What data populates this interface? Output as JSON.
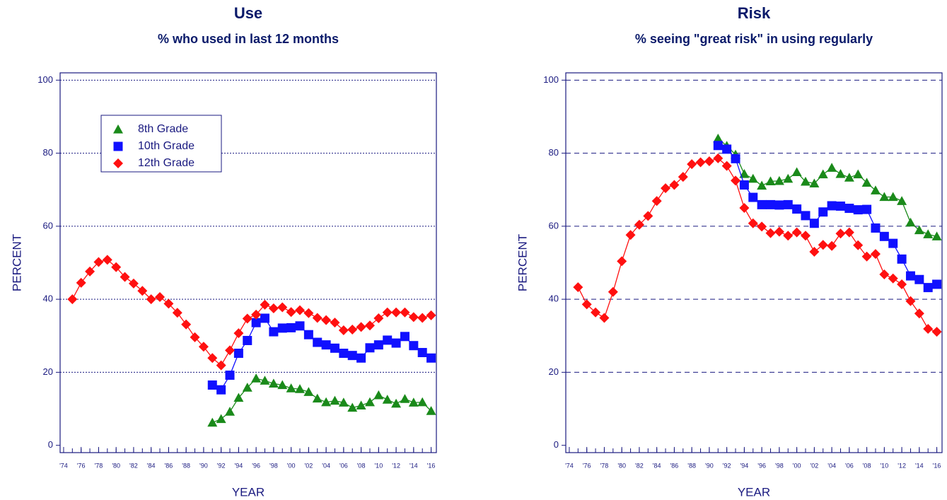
{
  "chart_data": [
    {
      "type": "line",
      "title": "Use",
      "subtitle": "% who used in last 12 months",
      "xlabel": "YEAR",
      "ylabel": "PERCENT",
      "x": [
        1975,
        1976,
        1977,
        1978,
        1979,
        1980,
        1981,
        1982,
        1983,
        1984,
        1985,
        1986,
        1987,
        1988,
        1989,
        1990,
        1991,
        1992,
        1993,
        1994,
        1995,
        1996,
        1997,
        1998,
        1999,
        2000,
        2001,
        2002,
        2003,
        2004,
        2005,
        2006,
        2007,
        2008,
        2009,
        2010,
        2011,
        2012,
        2013,
        2014,
        2015,
        2016
      ],
      "series": [
        {
          "name": "8th Grade",
          "color": "#1a8a1a",
          "marker": "triangle",
          "values": [
            null,
            null,
            null,
            null,
            null,
            null,
            null,
            null,
            null,
            null,
            null,
            null,
            null,
            null,
            null,
            null,
            6.2,
            7.2,
            9.2,
            13.0,
            15.8,
            18.3,
            17.7,
            16.9,
            16.5,
            15.6,
            15.4,
            14.6,
            12.8,
            11.8,
            12.2,
            11.7,
            10.3,
            10.9,
            11.8,
            13.7,
            12.5,
            11.4,
            12.7,
            11.7,
            11.8,
            9.4
          ]
        },
        {
          "name": "10th Grade",
          "color": "#1010ff",
          "marker": "square",
          "values": [
            null,
            null,
            null,
            null,
            null,
            null,
            null,
            null,
            null,
            null,
            null,
            null,
            null,
            null,
            null,
            null,
            16.5,
            15.2,
            19.2,
            25.2,
            28.7,
            33.6,
            34.8,
            31.1,
            32.1,
            32.2,
            32.7,
            30.3,
            28.2,
            27.5,
            26.6,
            25.2,
            24.6,
            23.9,
            26.7,
            27.5,
            28.8,
            28.0,
            29.8,
            27.3,
            25.4,
            23.9
          ]
        },
        {
          "name": "12th Grade",
          "color": "#ff1010",
          "marker": "diamond",
          "values": [
            40.0,
            44.5,
            47.6,
            50.2,
            50.8,
            48.8,
            46.1,
            44.3,
            42.3,
            40.0,
            40.6,
            38.8,
            36.3,
            33.1,
            29.6,
            27.0,
            23.9,
            21.9,
            26.0,
            30.7,
            34.7,
            35.8,
            38.5,
            37.5,
            37.8,
            36.5,
            37.0,
            36.2,
            34.9,
            34.3,
            33.6,
            31.5,
            31.7,
            32.4,
            32.8,
            34.8,
            36.4,
            36.4,
            36.4,
            35.1,
            34.9,
            35.6
          ]
        }
      ],
      "xlim": [
        1973.6,
        2016.6
      ],
      "ylim": [
        -2,
        102
      ],
      "xticks": [
        {
          "value": 1974,
          "label": "'74"
        },
        {
          "value": 1976,
          "label": "'76"
        },
        {
          "value": 1978,
          "label": "'78"
        },
        {
          "value": 1980,
          "label": "'80"
        },
        {
          "value": 1982,
          "label": "'82"
        },
        {
          "value": 1984,
          "label": "'84"
        },
        {
          "value": 1986,
          "label": "'86"
        },
        {
          "value": 1988,
          "label": "'88"
        },
        {
          "value": 1990,
          "label": "'90"
        },
        {
          "value": 1992,
          "label": "'92"
        },
        {
          "value": 1994,
          "label": "'94"
        },
        {
          "value": 1996,
          "label": "'96"
        },
        {
          "value": 1998,
          "label": "'98"
        },
        {
          "value": 2000,
          "label": "'00"
        },
        {
          "value": 2002,
          "label": "'02"
        },
        {
          "value": 2004,
          "label": "'04"
        },
        {
          "value": 2006,
          "label": "'06"
        },
        {
          "value": 2008,
          "label": "'08"
        },
        {
          "value": 2010,
          "label": "'10"
        },
        {
          "value": 2012,
          "label": "'12"
        },
        {
          "value": 2014,
          "label": "'14"
        },
        {
          "value": 2016,
          "label": "'16"
        }
      ],
      "yticks": [
        0,
        20,
        40,
        60,
        80,
        100
      ],
      "grid": true,
      "grid_style": "dotted",
      "legend": "upper left"
    },
    {
      "type": "line",
      "title": "Risk",
      "subtitle": "% seeing \"great risk\" in using regularly",
      "xlabel": "YEAR",
      "ylabel": "PERCENT",
      "x": [
        1975,
        1976,
        1977,
        1978,
        1979,
        1980,
        1981,
        1982,
        1983,
        1984,
        1985,
        1986,
        1987,
        1988,
        1989,
        1990,
        1991,
        1992,
        1993,
        1994,
        1995,
        1996,
        1997,
        1998,
        1999,
        2000,
        2001,
        2002,
        2003,
        2004,
        2005,
        2006,
        2007,
        2008,
        2009,
        2010,
        2011,
        2012,
        2013,
        2014,
        2015,
        2016
      ],
      "series": [
        {
          "name": "8th Grade",
          "color": "#1a8a1a",
          "marker": "triangle",
          "values": [
            null,
            null,
            null,
            null,
            null,
            null,
            null,
            null,
            null,
            null,
            null,
            null,
            null,
            null,
            null,
            null,
            84.0,
            82.0,
            79.6,
            74.3,
            73.0,
            71.1,
            72.3,
            72.4,
            73.0,
            74.8,
            72.2,
            71.7,
            74.2,
            76.0,
            74.3,
            73.3,
            74.2,
            71.9,
            69.8,
            68.0,
            68.0,
            66.9,
            61.0,
            58.9,
            57.8,
            57.2
          ]
        },
        {
          "name": "10th Grade",
          "color": "#1010ff",
          "marker": "square",
          "values": [
            null,
            null,
            null,
            null,
            null,
            null,
            null,
            null,
            null,
            null,
            null,
            null,
            null,
            null,
            null,
            null,
            82.1,
            81.1,
            78.5,
            71.3,
            67.9,
            65.9,
            65.9,
            65.8,
            65.9,
            64.7,
            62.9,
            60.8,
            63.9,
            65.6,
            65.5,
            64.9,
            64.5,
            64.6,
            59.5,
            57.2,
            55.3,
            51.0,
            46.4,
            45.4,
            43.2,
            44.1
          ]
        },
        {
          "name": "12th Grade",
          "color": "#ff1010",
          "marker": "diamond",
          "values": [
            43.3,
            38.6,
            36.4,
            34.9,
            42.0,
            50.4,
            57.6,
            60.4,
            62.8,
            66.9,
            70.4,
            71.3,
            73.5,
            77.0,
            77.5,
            77.8,
            78.6,
            76.5,
            72.5,
            65.0,
            60.8,
            59.9,
            58.1,
            58.5,
            57.4,
            58.3,
            57.4,
            53.0,
            54.9,
            54.6,
            58.0,
            58.3,
            54.8,
            51.7,
            52.4,
            46.8,
            45.7,
            44.1,
            39.5,
            36.1,
            31.9,
            31.1
          ]
        }
      ],
      "xlim": [
        1973.6,
        2016.6
      ],
      "ylim": [
        -2,
        102
      ],
      "xticks": [
        {
          "value": 1974,
          "label": "'74"
        },
        {
          "value": 1976,
          "label": "'76"
        },
        {
          "value": 1978,
          "label": "'78"
        },
        {
          "value": 1980,
          "label": "'80"
        },
        {
          "value": 1982,
          "label": "'82"
        },
        {
          "value": 1984,
          "label": "'84"
        },
        {
          "value": 1986,
          "label": "'86"
        },
        {
          "value": 1988,
          "label": "'88"
        },
        {
          "value": 1990,
          "label": "'90"
        },
        {
          "value": 1992,
          "label": "'92"
        },
        {
          "value": 1994,
          "label": "'94"
        },
        {
          "value": 1996,
          "label": "'96"
        },
        {
          "value": 1998,
          "label": "'98"
        },
        {
          "value": 2000,
          "label": "'00"
        },
        {
          "value": 2002,
          "label": "'02"
        },
        {
          "value": 2004,
          "label": "'04"
        },
        {
          "value": 2006,
          "label": "'06"
        },
        {
          "value": 2008,
          "label": "'08"
        },
        {
          "value": 2010,
          "label": "'10"
        },
        {
          "value": 2012,
          "label": "'12"
        },
        {
          "value": 2014,
          "label": "'14"
        },
        {
          "value": 2016,
          "label": "'16"
        }
      ],
      "yticks": [
        0,
        20,
        40,
        60,
        80,
        100
      ],
      "grid": true,
      "grid_style": "dashed",
      "legend": false
    }
  ]
}
